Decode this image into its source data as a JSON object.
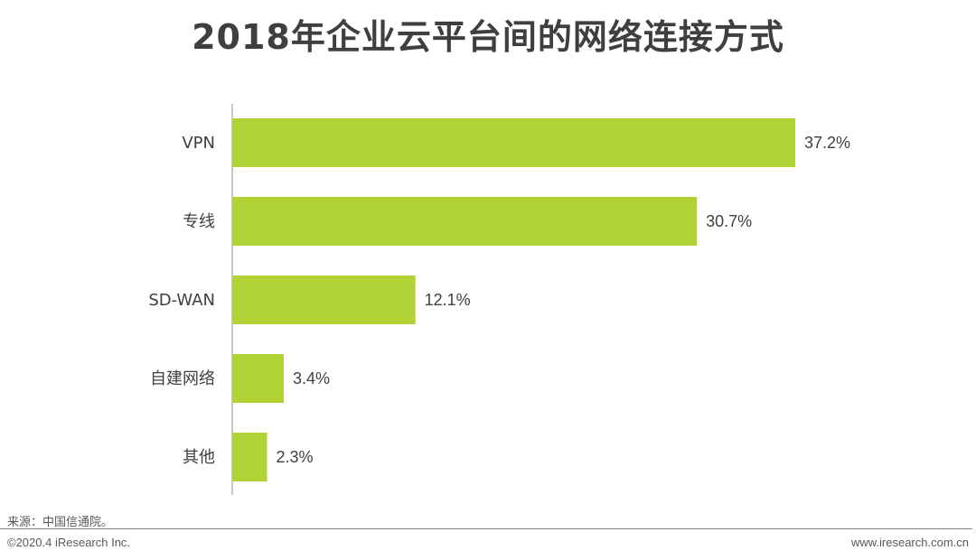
{
  "chart_data": {
    "type": "bar",
    "orientation": "horizontal",
    "title": "2018年企业云平台间的网络连接方式",
    "categories": [
      "VPN",
      "专线",
      "SD-WAN",
      "自建网络",
      "其他"
    ],
    "values": [
      37.2,
      30.7,
      12.1,
      3.4,
      2.3
    ],
    "value_labels": [
      "37.2%",
      "30.7%",
      "12.1%",
      "3.4%",
      "2.3%"
    ],
    "unit": "%",
    "bar_color": "#b0d235",
    "xlabel": "",
    "ylabel": "",
    "xlim": [
      0,
      37.2
    ],
    "grid": false,
    "legend": "none"
  },
  "footer": {
    "source": "来源：中国信通院。",
    "copyright": "©2020.4 iResearch Inc.",
    "website": "www.iresearch.com.cn"
  }
}
